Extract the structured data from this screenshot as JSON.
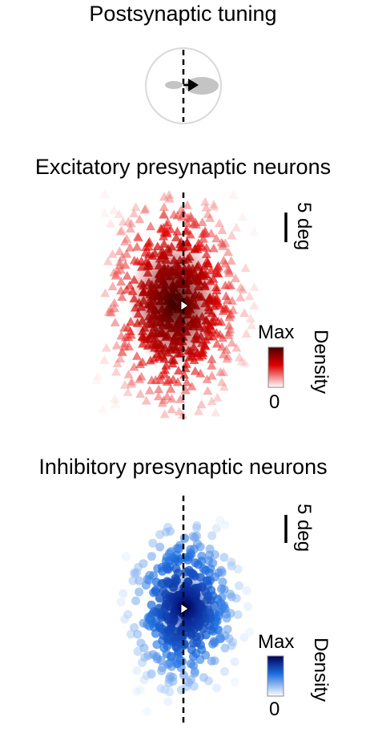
{
  "titles": {
    "postsynaptic": "Postsynaptic tuning",
    "excitatory": "Excitatory presynaptic neurons",
    "inhibitory": "Inhibitory presynaptic neurons"
  },
  "scale_bar": {
    "label": "5 deg"
  },
  "colorbar": {
    "max_label": "Max",
    "min_label": "0",
    "title": "Density"
  },
  "colors": {
    "excitatory_dark": "#5a0000",
    "excitatory_mid": "#e00000",
    "excitatory_light": "#ffd8d8",
    "inhibitory_dark": "#00006a",
    "inhibitory_mid": "#1e6fe0",
    "inhibitory_light": "#dceaff",
    "tuning_lobe": "#c4c4c4",
    "circle": "#d9d9d9"
  }
}
